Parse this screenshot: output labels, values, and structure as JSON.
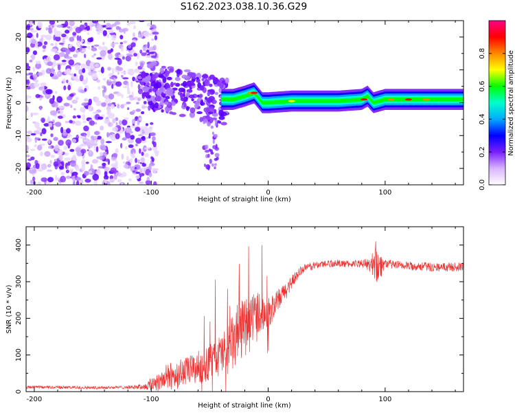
{
  "title": "S162.2023.038.10.36.G29",
  "colors": {
    "snr_line": "#ee3333",
    "axis": "#000000",
    "colorbar_stops": [
      "#ffffff",
      "#d9b3ff",
      "#7a1fff",
      "#0000ff",
      "#00aaff",
      "#00ffcc",
      "#00ff00",
      "#ffff00",
      "#ff8800",
      "#ff0000",
      "#ff0088"
    ]
  },
  "chart_data": [
    {
      "type": "heatmap",
      "xlabel": "Height of straight line (km)",
      "ylabel": "Frequency (Hz)",
      "xlim": [
        -207,
        167
      ],
      "ylim": [
        -25,
        25
      ],
      "x_ticks": [
        -200,
        -100,
        0,
        100
      ],
      "y_ticks": [
        -20,
        -10,
        0,
        10,
        20
      ],
      "grid": false,
      "colorbar": {
        "label": "Normalized spectral amplitude",
        "range": [
          0,
          1
        ],
        "ticks": [
          "0.0",
          "0.2",
          "0.4",
          "0.6",
          "0.8"
        ]
      },
      "ridge": {
        "description_free": true,
        "x": [
          -100,
          -80,
          -60,
          -45,
          -30,
          -20,
          -12,
          -5,
          0,
          20,
          40,
          60,
          80,
          85,
          90,
          100,
          130,
          167
        ],
        "y": [
          5,
          4,
          2,
          1,
          1,
          2,
          3,
          0,
          0,
          0.5,
          0.5,
          0.5,
          1,
          2,
          0,
          1,
          1,
          1
        ]
      }
    },
    {
      "type": "line",
      "xlabel": "Height of straight line (km)",
      "ylabel": "SNR (10 * v/v)",
      "xlim": [
        -207,
        167
      ],
      "ylim": [
        0,
        450
      ],
      "x_ticks": [
        -200,
        -100,
        0,
        100
      ],
      "y_ticks": [
        0,
        100,
        200,
        300,
        400
      ],
      "grid": false,
      "series": [
        {
          "x": [
            -207,
            -180,
            -150,
            -120,
            -105,
            -100,
            -90,
            -80,
            -70,
            -60,
            -50,
            -40,
            -30,
            -25,
            -20,
            -15,
            -10,
            -5,
            0,
            5,
            10,
            15,
            20,
            25,
            30,
            40,
            50,
            60,
            70,
            80,
            88,
            92,
            95,
            98,
            100,
            110,
            120,
            130,
            140,
            150,
            160,
            167
          ],
          "values": [
            12,
            12,
            11,
            12,
            14,
            20,
            35,
            45,
            55,
            65,
            80,
            100,
            130,
            160,
            170,
            200,
            220,
            215,
            215,
            230,
            255,
            275,
            300,
            320,
            335,
            345,
            350,
            350,
            348,
            350,
            345,
            360,
            340,
            345,
            350,
            345,
            343,
            342,
            340,
            340,
            340,
            340
          ],
          "noise": [
            4,
            4,
            4,
            4,
            8,
            20,
            35,
            40,
            40,
            45,
            50,
            60,
            80,
            90,
            80,
            70,
            60,
            50,
            40,
            35,
            30,
            25,
            20,
            15,
            12,
            10,
            10,
            10,
            10,
            10,
            20,
            60,
            50,
            20,
            12,
            12,
            12,
            12,
            12,
            12,
            12,
            12
          ]
        }
      ]
    }
  ]
}
